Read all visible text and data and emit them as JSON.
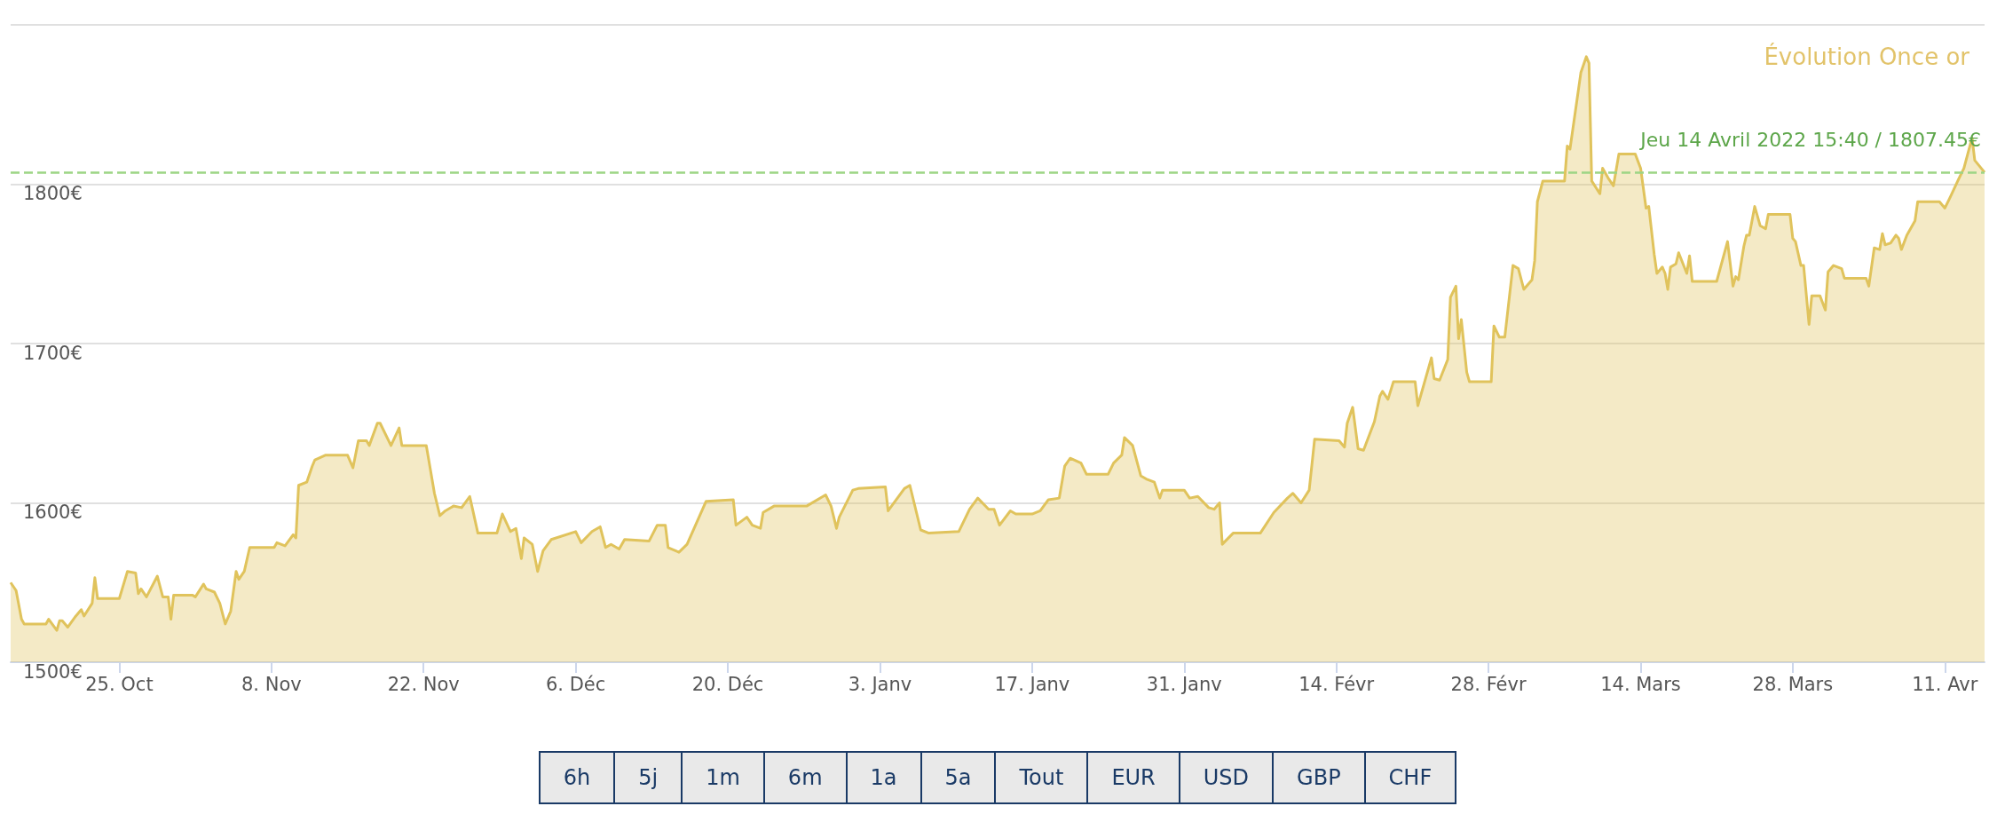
{
  "chart_data": {
    "type": "area",
    "title": "Évolution Once or",
    "x": [
      "2021-10-15T00:00",
      "2021-10-15T12:00",
      "2021-10-16T00:00",
      "2021-10-16T06:00",
      "2021-10-18T06:00",
      "2021-10-18T12:00",
      "2021-10-19T06:00",
      "2021-10-19T12:00",
      "2021-10-19T18:00",
      "2021-10-20T06:00",
      "2021-10-21T00:00",
      "2021-10-21T12:00",
      "2021-10-21T18:00",
      "2021-10-22T12:00",
      "2021-10-22T18:00",
      "2021-10-23T00:00",
      "2021-10-25T00:00",
      "2021-10-25T18:00",
      "2021-10-26T12:00",
      "2021-10-26T18:00",
      "2021-10-27T00:00",
      "2021-10-27T12:00",
      "2021-10-28T12:00",
      "2021-10-29T00:00",
      "2021-10-29T12:00",
      "2021-10-29T18:00",
      "2021-10-30T00:00",
      "2021-10-31T18:00",
      "2021-11-01T00:00",
      "2021-11-01T18:00",
      "2021-11-02T00:00",
      "2021-11-02T18:00",
      "2021-11-03T06:00",
      "2021-11-03T18:00",
      "2021-11-04T06:00",
      "2021-11-04T18:00",
      "2021-11-05T00:00",
      "2021-11-05T12:00",
      "2021-11-06T00:00",
      "2021-11-08T06:00",
      "2021-11-08T12:00",
      "2021-11-09T06:00",
      "2021-11-10T00:00",
      "2021-11-10T06:00",
      "2021-11-10T12:00",
      "2021-11-11T06:00",
      "2021-11-11T18:00",
      "2021-11-12T00:00",
      "2021-11-13T00:00",
      "2021-11-15T00:00",
      "2021-11-15T12:00",
      "2021-11-16T00:00",
      "2021-11-16T18:00",
      "2021-11-17T00:00",
      "2021-11-17T18:00",
      "2021-11-18T00:00",
      "2021-11-19T00:00",
      "2021-11-19T18:00",
      "2021-11-20T00:00",
      "2021-11-22T06:00",
      "2021-11-22T18:00",
      "2021-11-23T00:00",
      "2021-11-23T12:00",
      "2021-11-24T00:00",
      "2021-11-24T18:00",
      "2021-11-25T12:00",
      "2021-11-26T06:00",
      "2021-11-27T00:00",
      "2021-11-28T18:00",
      "2021-11-29T06:00",
      "2021-11-30T00:00",
      "2021-11-30T12:00",
      "2021-12-01T00:00",
      "2021-12-01T06:00",
      "2021-12-02T00:00",
      "2021-12-02T12:00",
      "2021-12-03T00:00",
      "2021-12-03T18:00",
      "2021-12-06T00:00",
      "2021-12-06T12:00",
      "2021-12-07T12:00",
      "2021-12-08T06:00",
      "2021-12-08T18:00",
      "2021-12-09T06:00",
      "2021-12-10T00:00",
      "2021-12-10T12:00",
      "2021-12-12T18:00",
      "2021-12-13T12:00",
      "2021-12-14T06:00",
      "2021-12-14T12:00",
      "2021-12-15T12:00",
      "2021-12-16T06:00",
      "2021-12-18T00:00",
      "2021-12-20T12:00",
      "2021-12-20T18:00",
      "2021-12-21T18:00",
      "2021-12-22T06:00",
      "2021-12-23T00:00",
      "2021-12-23T06:00",
      "2021-12-24T06:00",
      "2021-12-27T06:00",
      "2021-12-29T00:00",
      "2021-12-29T12:00",
      "2021-12-30T00:00",
      "2021-12-30T06:00",
      "2021-12-31T12:00",
      "2022-01-01T00:00",
      "2022-01-03T12:00",
      "2022-01-03T18:00",
      "2022-01-05T06:00",
      "2022-01-05T18:00",
      "2022-01-06T18:00",
      "2022-01-07T12:00",
      "2022-01-10T06:00",
      "2022-01-11T06:00",
      "2022-01-12T00:00",
      "2022-01-13T00:00",
      "2022-01-13T12:00",
      "2022-01-14T00:00",
      "2022-01-15T00:00",
      "2022-01-15T12:00",
      "2022-01-17T00:00",
      "2022-01-17T18:00",
      "2022-01-18T12:00",
      "2022-01-19T12:00",
      "2022-01-20T00:00",
      "2022-01-20T12:00",
      "2022-01-21T12:00",
      "2022-01-22T00:00",
      "2022-01-24T00:00",
      "2022-01-24T12:00",
      "2022-01-25T06:00",
      "2022-01-25T12:00",
      "2022-01-26T06:00",
      "2022-01-27T00:00",
      "2022-01-27T12:00",
      "2022-01-28T06:00",
      "2022-01-28T18:00",
      "2022-01-29T00:00",
      "2022-01-31T00:00",
      "2022-01-31T12:00",
      "2022-02-01T06:00",
      "2022-02-02T06:00",
      "2022-02-02T18:00",
      "2022-02-03T06:00",
      "2022-02-03T12:00",
      "2022-02-04T12:00",
      "2022-02-07T00:00",
      "2022-02-08T06:00",
      "2022-02-09T12:00",
      "2022-02-10T00:00",
      "2022-02-10T18:00",
      "2022-02-11T12:00",
      "2022-02-12T00:00",
      "2022-02-14T06:00",
      "2022-02-14T18:00",
      "2022-02-15T00:00",
      "2022-02-15T12:00",
      "2022-02-16T00:00",
      "2022-02-16T12:00",
      "2022-02-17T12:00",
      "2022-02-18T00:00",
      "2022-02-18T06:00",
      "2022-02-18T18:00",
      "2022-02-19T06:00",
      "2022-02-21T06:00",
      "2022-02-21T12:00",
      "2022-02-22T18:00",
      "2022-02-23T00:00",
      "2022-02-23T12:00",
      "2022-02-24T06:00",
      "2022-02-24T12:00",
      "2022-02-25T00:00",
      "2022-02-25T06:00",
      "2022-02-25T12:00",
      "2022-02-26T00:00",
      "2022-02-26T06:00",
      "2022-02-28T06:00",
      "2022-02-28T12:00",
      "2022-03-01T00:00",
      "2022-03-01T12:00",
      "2022-03-02T06:00",
      "2022-03-02T18:00",
      "2022-03-03T06:00",
      "2022-03-04T00:00",
      "2022-03-04T06:00",
      "2022-03-04T12:00",
      "2022-03-05T00:00",
      "2022-03-07T00:00",
      "2022-03-07T06:00",
      "2022-03-07T12:00",
      "2022-03-08T12:00",
      "2022-03-09T00:00",
      "2022-03-09T06:00",
      "2022-03-09T12:00",
      "2022-03-10T06:00",
      "2022-03-10T12:00",
      "2022-03-11T00:00",
      "2022-03-11T12:00",
      "2022-03-12T00:00",
      "2022-03-13T12:00",
      "2022-03-14T00:00",
      "2022-03-14T12:00",
      "2022-03-14T18:00",
      "2022-03-15T06:00",
      "2022-03-15T12:00",
      "2022-03-16T00:00",
      "2022-03-16T06:00",
      "2022-03-16T12:00",
      "2022-03-16T18:00",
      "2022-03-17T06:00",
      "2022-03-17T12:00",
      "2022-03-18T06:00",
      "2022-03-18T12:00",
      "2022-03-18T18:00",
      "2022-03-21T00:00",
      "2022-03-22T00:00",
      "2022-03-22T12:00",
      "2022-03-22T18:00",
      "2022-03-23T00:00",
      "2022-03-23T12:00",
      "2022-03-23T18:00",
      "2022-03-24T00:00",
      "2022-03-24T12:00",
      "2022-03-25T00:00",
      "2022-03-25T12:00",
      "2022-03-25T18:00",
      "2022-03-27T18:00",
      "2022-03-28T00:00",
      "2022-03-28T06:00",
      "2022-03-28T18:00",
      "2022-03-29T00:00",
      "2022-03-29T12:00",
      "2022-03-29T18:00",
      "2022-03-30T12:00",
      "2022-03-31T00:00",
      "2022-03-31T06:00",
      "2022-03-31T18:00",
      "2022-04-01T12:00",
      "2022-04-01T18:00",
      "2022-04-03T18:00",
      "2022-04-04T00:00",
      "2022-04-04T12:00",
      "2022-04-05T00:00",
      "2022-04-05T06:00",
      "2022-04-05T12:00",
      "2022-04-06T00:00",
      "2022-04-06T12:00",
      "2022-04-06T18:00",
      "2022-04-07T00:00",
      "2022-04-07T12:00",
      "2022-04-08T06:00",
      "2022-04-08T12:00",
      "2022-04-10T12:00",
      "2022-04-11T00:00",
      "2022-04-11T12:00",
      "2022-04-12T06:00",
      "2022-04-12T18:00",
      "2022-04-13T12:00",
      "2022-04-13T18:00",
      "2022-04-14T15:40"
    ],
    "series": [
      {
        "color": "#e0c35c",
        "values": [
          1550,
          1545,
          1527,
          1524,
          1524,
          1527,
          1520,
          1526,
          1526,
          1522,
          1529,
          1533,
          1529,
          1537,
          1553,
          1540,
          1540,
          1557,
          1556,
          1543,
          1546,
          1541,
          1554,
          1541,
          1541,
          1527,
          1542,
          1542,
          1541,
          1549,
          1546,
          1544,
          1537,
          1524,
          1532,
          1557,
          1552,
          1557,
          1572,
          1572,
          1575,
          1573,
          1580,
          1578,
          1611,
          1613,
          1623,
          1627,
          1630,
          1630,
          1622,
          1639,
          1639,
          1636,
          1650,
          1650,
          1636,
          1647,
          1636,
          1636,
          1616,
          1606,
          1592,
          1595,
          1598,
          1597,
          1604,
          1581,
          1581,
          1593,
          1582,
          1584,
          1565,
          1578,
          1574,
          1557,
          1570,
          1577,
          1582,
          1575,
          1582,
          1585,
          1572,
          1574,
          1571,
          1577,
          1576,
          1586,
          1586,
          1572,
          1569,
          1574,
          1601,
          1602,
          1586,
          1591,
          1586,
          1584,
          1594,
          1598,
          1598,
          1605,
          1598,
          1584,
          1591,
          1608,
          1609,
          1610,
          1595,
          1609,
          1611,
          1583,
          1581,
          1582,
          1596,
          1603,
          1596,
          1596,
          1586,
          1595,
          1593,
          1593,
          1595,
          1602,
          1603,
          1623,
          1628,
          1625,
          1618,
          1618,
          1625,
          1630,
          1641,
          1636,
          1617,
          1615,
          1613,
          1603,
          1608,
          1608,
          1603,
          1604,
          1597,
          1596,
          1600,
          1574,
          1581,
          1581,
          1594,
          1603,
          1606,
          1600,
          1608,
          1640,
          1639,
          1635,
          1650,
          1660,
          1634,
          1633,
          1651,
          1667,
          1670,
          1665,
          1676,
          1676,
          1661,
          1691,
          1678,
          1677,
          1690,
          1729,
          1736,
          1703,
          1715,
          1682,
          1676,
          1676,
          1711,
          1704,
          1704,
          1749,
          1747,
          1734,
          1740,
          1752,
          1789,
          1802,
          1802,
          1824,
          1822,
          1870,
          1880,
          1876,
          1802,
          1794,
          1810,
          1804,
          1799,
          1819,
          1819,
          1810,
          1785,
          1786,
          1756,
          1744,
          1748,
          1744,
          1734,
          1748,
          1750,
          1757,
          1744,
          1755,
          1739,
          1739,
          1764,
          1736,
          1742,
          1740,
          1761,
          1768,
          1768,
          1786,
          1774,
          1772,
          1781,
          1781,
          1766,
          1764,
          1749,
          1749,
          1712,
          1730,
          1730,
          1721,
          1745,
          1749,
          1747,
          1741,
          1741,
          1736,
          1760,
          1759,
          1769,
          1762,
          1763,
          1768,
          1766,
          1759,
          1768,
          1777,
          1789,
          1789,
          1785,
          1792,
          1803,
          1810,
          1829,
          1815,
          1807.45
        ]
      }
    ],
    "xlim": [
      "2021-10-15T00:00",
      "2022-04-14T15:40"
    ],
    "xticks": [
      {
        "value": "2021-10-25",
        "label": "25. Oct"
      },
      {
        "value": "2021-11-08",
        "label": "8. Nov"
      },
      {
        "value": "2021-11-22",
        "label": "22. Nov"
      },
      {
        "value": "2021-12-06",
        "label": "6. Déc"
      },
      {
        "value": "2021-12-20",
        "label": "20. Déc"
      },
      {
        "value": "2022-01-03",
        "label": "3. Janv"
      },
      {
        "value": "2022-01-17",
        "label": "17. Janv"
      },
      {
        "value": "2022-01-31",
        "label": "31. Janv"
      },
      {
        "value": "2022-02-14",
        "label": "14. Févr"
      },
      {
        "value": "2022-02-28",
        "label": "28. Févr"
      },
      {
        "value": "2022-03-14",
        "label": "14. Mars"
      },
      {
        "value": "2022-03-28",
        "label": "28. Mars"
      },
      {
        "value": "2022-04-11",
        "label": "11. Avr"
      }
    ],
    "ylim": [
      1500,
      1900
    ],
    "yticks": [
      {
        "value": 1500,
        "label": "1500€"
      },
      {
        "value": 1600,
        "label": "1600€"
      },
      {
        "value": 1700,
        "label": "1700€"
      },
      {
        "value": 1800,
        "label": "1800€"
      },
      {
        "value": 1900,
        "label": null
      }
    ],
    "grid": "y",
    "ref_lines": [
      {
        "axis": "y",
        "value": 1807.45,
        "label": "Jeu 14 Avril 2022 15:40 / 1807.45€",
        "color": "#9dd585",
        "line_style": "dashed"
      }
    ],
    "annotations": [
      "6h",
      "5j",
      "1m",
      "6m",
      "1a",
      "5a",
      "Tout",
      "EUR",
      "USD",
      "GBP",
      "CHF"
    ]
  }
}
